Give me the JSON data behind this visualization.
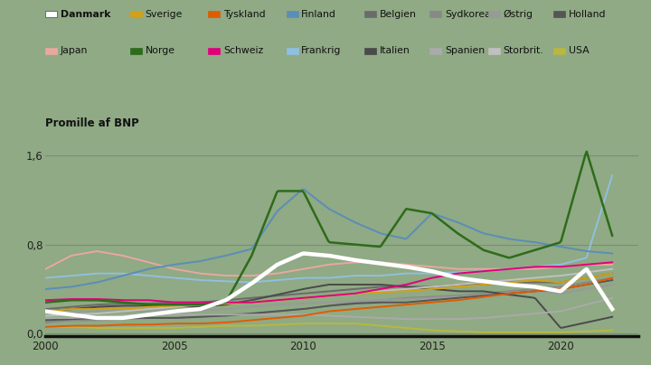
{
  "background_color": "#8faa84",
  "title": "Promille af BNP",
  "ylim": [
    -0.02,
    1.75
  ],
  "xlim": [
    2000,
    2023
  ],
  "yticks": [
    0.0,
    0.8,
    1.6
  ],
  "xticks": [
    2000,
    2005,
    2010,
    2015,
    2020
  ],
  "series": {
    "Danmark": {
      "color": "#ffffff",
      "lw": 3.2,
      "zorder": 10,
      "data": {
        "x": [
          2000,
          2001,
          2002,
          2003,
          2004,
          2005,
          2006,
          2007,
          2008,
          2009,
          2010,
          2011,
          2012,
          2013,
          2014,
          2015,
          2016,
          2017,
          2018,
          2019,
          2020,
          2021,
          2022
        ],
        "y": [
          0.2,
          0.17,
          0.14,
          0.14,
          0.17,
          0.2,
          0.22,
          0.3,
          0.45,
          0.62,
          0.72,
          0.7,
          0.66,
          0.63,
          0.6,
          0.56,
          0.5,
          0.47,
          0.44,
          0.42,
          0.38,
          0.58,
          0.22
        ]
      }
    },
    "Sverige": {
      "color": "#d4a017",
      "lw": 1.4,
      "zorder": 5,
      "data": {
        "x": [
          2000,
          2001,
          2002,
          2003,
          2004,
          2005,
          2006,
          2007,
          2008,
          2009,
          2010,
          2011,
          2012,
          2013,
          2014,
          2015,
          2016,
          2017,
          2018,
          2019,
          2020,
          2021,
          2022
        ],
        "y": [
          0.2,
          0.22,
          0.22,
          0.22,
          0.24,
          0.25,
          0.26,
          0.27,
          0.28,
          0.3,
          0.32,
          0.34,
          0.36,
          0.37,
          0.38,
          0.4,
          0.42,
          0.44,
          0.46,
          0.48,
          0.46,
          0.5,
          0.54
        ]
      }
    },
    "Tyskland": {
      "color": "#e05c00",
      "lw": 1.4,
      "zorder": 5,
      "data": {
        "x": [
          2000,
          2001,
          2002,
          2003,
          2004,
          2005,
          2006,
          2007,
          2008,
          2009,
          2010,
          2011,
          2012,
          2013,
          2014,
          2015,
          2016,
          2017,
          2018,
          2019,
          2020,
          2021,
          2022
        ],
        "y": [
          0.06,
          0.07,
          0.07,
          0.08,
          0.08,
          0.09,
          0.09,
          0.1,
          0.12,
          0.14,
          0.16,
          0.2,
          0.22,
          0.24,
          0.26,
          0.28,
          0.3,
          0.33,
          0.36,
          0.38,
          0.4,
          0.44,
          0.5
        ]
      }
    },
    "Finland": {
      "color": "#5b8db8",
      "lw": 1.4,
      "zorder": 6,
      "data": {
        "x": [
          2000,
          2001,
          2002,
          2003,
          2004,
          2005,
          2006,
          2007,
          2008,
          2009,
          2010,
          2011,
          2012,
          2013,
          2014,
          2015,
          2016,
          2017,
          2018,
          2019,
          2020,
          2021,
          2022
        ],
        "y": [
          0.4,
          0.42,
          0.46,
          0.52,
          0.58,
          0.62,
          0.65,
          0.7,
          0.76,
          1.1,
          1.3,
          1.12,
          1.0,
          0.9,
          0.85,
          1.08,
          1.0,
          0.9,
          0.85,
          0.82,
          0.78,
          0.74,
          0.72
        ]
      }
    },
    "Belgien": {
      "color": "#6b6b6b",
      "lw": 1.4,
      "zorder": 4,
      "data": {
        "x": [
          2000,
          2001,
          2002,
          2003,
          2004,
          2005,
          2006,
          2007,
          2008,
          2009,
          2010,
          2011,
          2012,
          2013,
          2014,
          2015,
          2016,
          2017,
          2018,
          2019,
          2020,
          2021,
          2022
        ],
        "y": [
          0.22,
          0.24,
          0.26,
          0.27,
          0.27,
          0.28,
          0.28,
          0.3,
          0.32,
          0.34,
          0.36,
          0.38,
          0.4,
          0.42,
          0.42,
          0.42,
          0.44,
          0.44,
          0.46,
          0.46,
          0.46,
          0.5,
          0.54
        ]
      }
    },
    "Sydkorea": {
      "color": "#888888",
      "lw": 1.4,
      "zorder": 4,
      "data": {
        "x": [
          2000,
          2001,
          2002,
          2003,
          2004,
          2005,
          2006,
          2007,
          2008,
          2009,
          2010,
          2011,
          2012,
          2013,
          2014,
          2015,
          2016,
          2017,
          2018,
          2019,
          2020,
          2021,
          2022
        ],
        "y": [
          0.1,
          0.12,
          0.12,
          0.13,
          0.14,
          0.14,
          0.15,
          0.17,
          0.18,
          0.2,
          0.22,
          0.25,
          0.28,
          0.3,
          0.32,
          0.33,
          0.34,
          0.36,
          0.38,
          0.4,
          0.42,
          0.46,
          0.5
        ]
      }
    },
    "Østrig": {
      "color": "#999999",
      "lw": 1.4,
      "zorder": 4,
      "data": {
        "x": [
          2000,
          2001,
          2002,
          2003,
          2004,
          2005,
          2006,
          2007,
          2008,
          2009,
          2010,
          2011,
          2012,
          2013,
          2014,
          2015,
          2016,
          2017,
          2018,
          2019,
          2020,
          2021,
          2022
        ],
        "y": [
          0.18,
          0.19,
          0.2,
          0.2,
          0.2,
          0.21,
          0.21,
          0.22,
          0.24,
          0.26,
          0.27,
          0.28,
          0.29,
          0.3,
          0.31,
          0.32,
          0.33,
          0.35,
          0.37,
          0.38,
          0.36,
          0.4,
          0.44
        ]
      }
    },
    "Holland": {
      "color": "#555555",
      "lw": 1.4,
      "zorder": 4,
      "data": {
        "x": [
          2000,
          2001,
          2002,
          2003,
          2004,
          2005,
          2006,
          2007,
          2008,
          2009,
          2010,
          2011,
          2012,
          2013,
          2014,
          2015,
          2016,
          2017,
          2018,
          2019,
          2020,
          2021,
          2022
        ],
        "y": [
          0.12,
          0.13,
          0.14,
          0.14,
          0.14,
          0.14,
          0.15,
          0.16,
          0.18,
          0.2,
          0.22,
          0.25,
          0.27,
          0.28,
          0.28,
          0.3,
          0.32,
          0.34,
          0.36,
          0.38,
          0.4,
          0.44,
          0.48
        ]
      }
    },
    "Japan": {
      "color": "#e8a8a0",
      "lw": 1.4,
      "zorder": 5,
      "data": {
        "x": [
          2000,
          2001,
          2002,
          2003,
          2004,
          2005,
          2006,
          2007,
          2008,
          2009,
          2010,
          2011,
          2012,
          2013,
          2014,
          2015,
          2016,
          2017,
          2018,
          2019,
          2020,
          2021,
          2022
        ],
        "y": [
          0.58,
          0.7,
          0.74,
          0.7,
          0.64,
          0.58,
          0.54,
          0.52,
          0.52,
          0.54,
          0.58,
          0.62,
          0.64,
          0.64,
          0.62,
          0.6,
          0.58,
          0.58,
          0.58,
          0.58,
          0.6,
          0.62,
          0.62
        ]
      }
    },
    "Norge": {
      "color": "#2e6b1a",
      "lw": 1.8,
      "zorder": 7,
      "data": {
        "x": [
          2000,
          2001,
          2002,
          2003,
          2004,
          2005,
          2006,
          2007,
          2008,
          2009,
          2010,
          2011,
          2012,
          2013,
          2014,
          2015,
          2016,
          2017,
          2018,
          2019,
          2020,
          2021,
          2022
        ],
        "y": [
          0.28,
          0.3,
          0.3,
          0.28,
          0.26,
          0.26,
          0.26,
          0.28,
          0.7,
          1.28,
          1.28,
          0.82,
          0.8,
          0.78,
          1.12,
          1.08,
          0.9,
          0.75,
          0.68,
          0.75,
          0.82,
          1.64,
          0.88
        ]
      }
    },
    "Schweiz": {
      "color": "#e0007a",
      "lw": 1.4,
      "zorder": 6,
      "data": {
        "x": [
          2000,
          2001,
          2002,
          2003,
          2004,
          2005,
          2006,
          2007,
          2008,
          2009,
          2010,
          2011,
          2012,
          2013,
          2014,
          2015,
          2016,
          2017,
          2018,
          2019,
          2020,
          2021,
          2022
        ],
        "y": [
          0.3,
          0.31,
          0.31,
          0.3,
          0.3,
          0.28,
          0.28,
          0.28,
          0.28,
          0.3,
          0.32,
          0.34,
          0.36,
          0.4,
          0.44,
          0.5,
          0.54,
          0.56,
          0.58,
          0.6,
          0.6,
          0.62,
          0.64
        ]
      }
    },
    "Frankrig": {
      "color": "#90c0e0",
      "lw": 1.4,
      "zorder": 5,
      "data": {
        "x": [
          2000,
          2001,
          2002,
          2003,
          2004,
          2005,
          2006,
          2007,
          2008,
          2009,
          2010,
          2011,
          2012,
          2013,
          2014,
          2015,
          2016,
          2017,
          2018,
          2019,
          2020,
          2021,
          2022
        ],
        "y": [
          0.5,
          0.52,
          0.54,
          0.54,
          0.52,
          0.5,
          0.48,
          0.47,
          0.46,
          0.48,
          0.5,
          0.5,
          0.52,
          0.52,
          0.54,
          0.54,
          0.55,
          0.56,
          0.58,
          0.6,
          0.62,
          0.68,
          1.42
        ]
      }
    },
    "Italien": {
      "color": "#4a4a4a",
      "lw": 1.4,
      "zorder": 4,
      "data": {
        "x": [
          2000,
          2001,
          2002,
          2003,
          2004,
          2005,
          2006,
          2007,
          2008,
          2009,
          2010,
          2011,
          2012,
          2013,
          2014,
          2015,
          2016,
          2017,
          2018,
          2019,
          2020,
          2021,
          2022
        ],
        "y": [
          0.2,
          0.22,
          0.24,
          0.25,
          0.25,
          0.25,
          0.24,
          0.26,
          0.3,
          0.35,
          0.4,
          0.44,
          0.44,
          0.44,
          0.42,
          0.4,
          0.38,
          0.38,
          0.35,
          0.32,
          0.05,
          0.1,
          0.15
        ]
      }
    },
    "Spanien": {
      "color": "#aaaaaa",
      "lw": 1.4,
      "zorder": 4,
      "data": {
        "x": [
          2000,
          2001,
          2002,
          2003,
          2004,
          2005,
          2006,
          2007,
          2008,
          2009,
          2010,
          2011,
          2012,
          2013,
          2014,
          2015,
          2016,
          2017,
          2018,
          2019,
          2020,
          2021,
          2022
        ],
        "y": [
          0.14,
          0.14,
          0.15,
          0.16,
          0.17,
          0.17,
          0.17,
          0.17,
          0.17,
          0.17,
          0.17,
          0.16,
          0.15,
          0.14,
          0.13,
          0.13,
          0.13,
          0.14,
          0.16,
          0.18,
          0.2,
          0.26,
          0.32
        ]
      }
    },
    "Storbrit.": {
      "color": "#c0c0c0",
      "lw": 1.4,
      "zorder": 4,
      "data": {
        "x": [
          2000,
          2001,
          2002,
          2003,
          2004,
          2005,
          2006,
          2007,
          2008,
          2009,
          2010,
          2011,
          2012,
          2013,
          2014,
          2015,
          2016,
          2017,
          2018,
          2019,
          2020,
          2021,
          2022
        ],
        "y": [
          0.16,
          0.17,
          0.18,
          0.2,
          0.22,
          0.24,
          0.26,
          0.27,
          0.28,
          0.3,
          0.32,
          0.34,
          0.36,
          0.38,
          0.4,
          0.42,
          0.44,
          0.46,
          0.48,
          0.5,
          0.52,
          0.55,
          0.58
        ]
      }
    },
    "USA": {
      "color": "#b8b840",
      "lw": 1.4,
      "zorder": 4,
      "data": {
        "x": [
          2000,
          2001,
          2002,
          2003,
          2004,
          2005,
          2006,
          2007,
          2008,
          2009,
          2010,
          2011,
          2012,
          2013,
          2014,
          2015,
          2016,
          2017,
          2018,
          2019,
          2020,
          2021,
          2022
        ],
        "y": [
          0.06,
          0.06,
          0.05,
          0.05,
          0.05,
          0.05,
          0.06,
          0.07,
          0.07,
          0.08,
          0.09,
          0.09,
          0.09,
          0.07,
          0.05,
          0.03,
          0.02,
          0.01,
          0.01,
          0.01,
          0.01,
          0.02,
          0.03
        ]
      }
    }
  },
  "legend_order": [
    "Danmark",
    "Sverige",
    "Tyskland",
    "Finland",
    "Belgien",
    "Sydkorea",
    "Østrig",
    "Holland",
    "Japan",
    "Norge",
    "Schweiz",
    "Frankrig",
    "Italien",
    "Spanien",
    "Storbrit.",
    "USA"
  ]
}
